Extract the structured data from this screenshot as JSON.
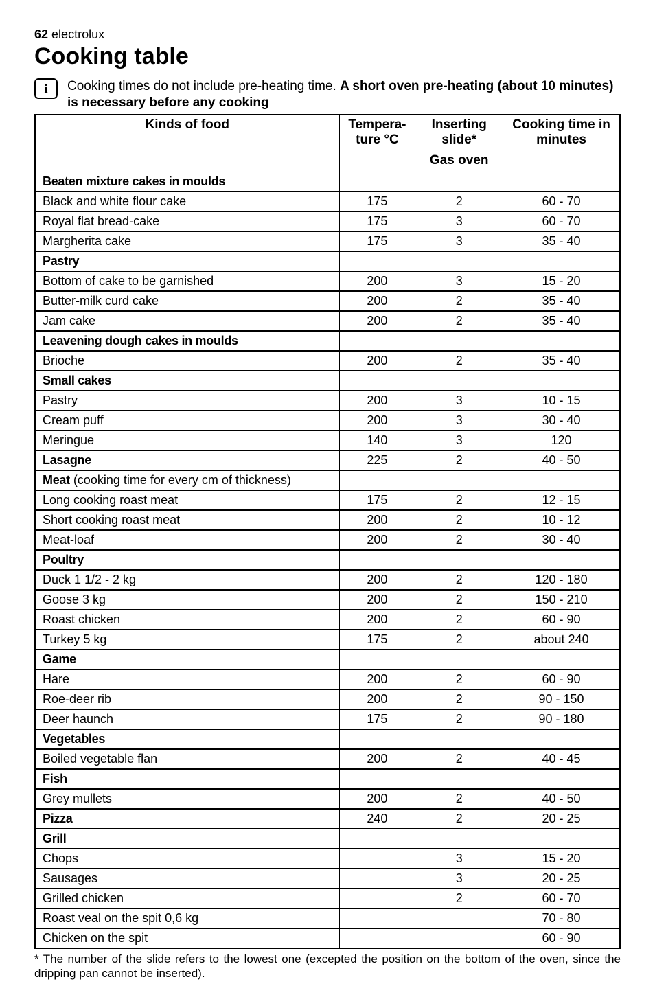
{
  "page": {
    "number": "62",
    "brand": "electrolux",
    "title": "Cooking table"
  },
  "info": {
    "icon": "i",
    "text_plain": "Cooking times do not include pre-heating time. ",
    "text_bold": "A short oven pre-heating (about 10 minutes) is necessary before any cooking"
  },
  "headers": {
    "kinds": "Kinds of food",
    "temp": "Tempera-ture  °C",
    "inserting": "Inserting slide*",
    "gas": "Gas oven",
    "cooking": "Cooking time in minutes"
  },
  "sections": [
    {
      "heading": "Beaten mixture cakes in moulds",
      "rows": [
        {
          "name": "Black and white flour cake",
          "temp": "175",
          "slide": "2",
          "time": "60 - 70"
        },
        {
          "name": "Royal flat bread-cake",
          "temp": "175",
          "slide": "3",
          "time": "60 - 70"
        },
        {
          "name": "Margherita cake",
          "temp": "175",
          "slide": "3",
          "time": "35 - 40"
        }
      ]
    },
    {
      "heading": "Pastry",
      "rows": [
        {
          "name": "Bottom of cake to be garnished",
          "temp": "200",
          "slide": "3",
          "time": "15 - 20"
        },
        {
          "name": "Butter-milk curd cake",
          "temp": "200",
          "slide": "2",
          "time": "35 - 40"
        },
        {
          "name": "Jam cake",
          "temp": "200",
          "slide": "2",
          "time": "35 - 40"
        }
      ]
    },
    {
      "heading": "Leavening dough cakes in moulds",
      "rows": [
        {
          "name": "Brioche",
          "temp": "200",
          "slide": "2",
          "time": "35 - 40"
        }
      ]
    },
    {
      "heading": "Small cakes",
      "rows": [
        {
          "name": "Pastry",
          "temp": "200",
          "slide": "3",
          "time": "10 - 15"
        },
        {
          "name": "Cream puff",
          "temp": "200",
          "slide": "3",
          "time": "30 - 40"
        },
        {
          "name": "Meringue",
          "temp": "140",
          "slide": "3",
          "time": "120"
        }
      ]
    },
    {
      "heading": "Lasagne",
      "inline": true,
      "rows": [
        {
          "name": "",
          "temp": "225",
          "slide": "2",
          "time": "40 - 50"
        }
      ]
    },
    {
      "heading": "Meat",
      "paren": " (cooking time for every cm of thickness)",
      "rows": [
        {
          "name": "Long cooking roast meat",
          "temp": "175",
          "slide": "2",
          "time": "12 - 15"
        },
        {
          "name": "Short cooking roast meat",
          "temp": "200",
          "slide": "2",
          "time": "10 - 12"
        },
        {
          "name": "Meat-loaf",
          "temp": "200",
          "slide": "2",
          "time": "30 - 40"
        }
      ]
    },
    {
      "heading": "Poultry",
      "rows": [
        {
          "name": "Duck 1 1/2 - 2 kg",
          "temp": "200",
          "slide": "2",
          "time": "120 - 180"
        },
        {
          "name": "Goose 3 kg",
          "temp": "200",
          "slide": "2",
          "time": "150 - 210"
        },
        {
          "name": "Roast chicken",
          "temp": "200",
          "slide": "2",
          "time": "60 - 90"
        },
        {
          "name": "Turkey 5 kg",
          "temp": "175",
          "slide": "2",
          "time": "about 240"
        }
      ]
    },
    {
      "heading": "Game",
      "rows": [
        {
          "name": "Hare",
          "temp": "200",
          "slide": "2",
          "time": "60 - 90"
        },
        {
          "name": "Roe-deer rib",
          "temp": "200",
          "slide": "2",
          "time": "90 - 150"
        },
        {
          "name": "Deer haunch",
          "temp": "175",
          "slide": "2",
          "time": "90 - 180"
        }
      ]
    },
    {
      "heading": "Vegetables",
      "rows": [
        {
          "name": "Boiled vegetable flan",
          "temp": "200",
          "slide": "2",
          "time": "40 - 45"
        }
      ]
    },
    {
      "heading": "Fish",
      "rows": [
        {
          "name": "Grey mullets",
          "temp": "200",
          "slide": "2",
          "time": "40 - 50"
        }
      ]
    },
    {
      "heading": "Pizza",
      "inline": true,
      "rows": [
        {
          "name": "",
          "temp": "240",
          "slide": "2",
          "time": "20 - 25"
        }
      ]
    },
    {
      "heading": "Grill",
      "rows": [
        {
          "name": "Chops",
          "temp": "",
          "slide": "3",
          "time": "15 - 20"
        },
        {
          "name": "Sausages",
          "temp": "",
          "slide": "3",
          "time": "20 - 25"
        },
        {
          "name": "Grilled chicken",
          "temp": "",
          "slide": "2",
          "time": "60 - 70"
        },
        {
          "name": "Roast veal on the spit 0,6 kg",
          "temp": "",
          "slide": "",
          "time": "70 - 80"
        },
        {
          "name": "Chicken on the spit",
          "temp": "",
          "slide": "",
          "time": "60 - 90"
        }
      ]
    }
  ],
  "footnote": "* The number of the slide refers to the lowest one (excepted the position on the bottom of the oven, since the dripping pan cannot be inserted)."
}
